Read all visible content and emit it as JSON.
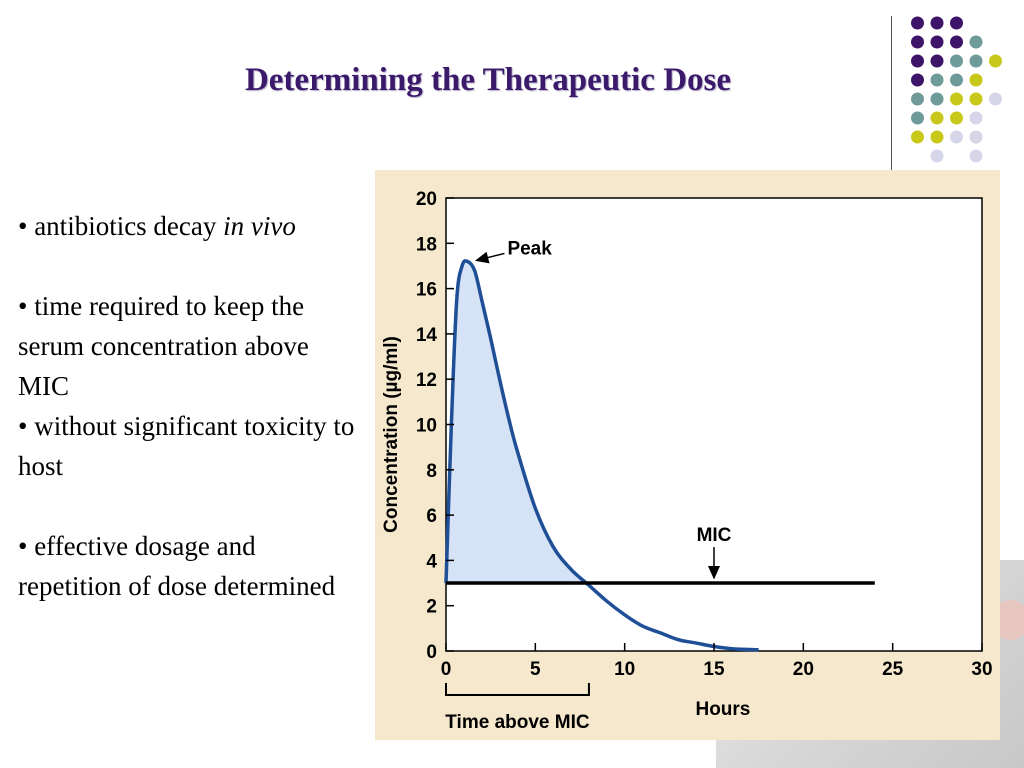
{
  "slide": {
    "title": "Determining the Therapeutic Dose",
    "bullets": [
      {
        "text": "antibiotics decay ",
        "italic": "in vivo"
      },
      {
        "text": "time required to keep the serum concentration above MIC"
      },
      {
        "text": "without significant toxicity to host"
      },
      {
        "text": "effective dosage and repetition of dose determined"
      }
    ],
    "bullet_char": "•"
  },
  "decor": {
    "dot_colors": {
      "purple": "#3d1467",
      "teal": "#6f9a9a",
      "yellow": "#c8c81a",
      "lavender": "#d6d6e8"
    }
  },
  "chart_data": {
    "type": "line",
    "xlabel": "Hours",
    "ylabel": "Concentration (µg/ml)",
    "xlim": [
      0,
      30
    ],
    "ylim": [
      0,
      20
    ],
    "x_ticks": [
      "0",
      "5",
      "10",
      "15",
      "20",
      "25",
      "30"
    ],
    "y_ticks": [
      "0",
      "2",
      "4",
      "6",
      "8",
      "10",
      "12",
      "14",
      "16",
      "18",
      "20"
    ],
    "series": [
      {
        "x": [
          0,
          0.3,
          0.6,
          0.9,
          1.2,
          1.6,
          2,
          2.5,
          3,
          3.5,
          4,
          5,
          6,
          7,
          8,
          9,
          10,
          11,
          12,
          13,
          14,
          15,
          16,
          17.5
        ],
        "y": [
          3,
          10,
          15.5,
          17,
          17.2,
          16.8,
          15.5,
          13.8,
          12,
          10.3,
          8.8,
          6.3,
          4.6,
          3.6,
          2.9,
          2.2,
          1.6,
          1.1,
          0.8,
          0.5,
          0.35,
          0.2,
          0.1,
          0.05
        ],
        "color": "#1f4f96"
      }
    ],
    "mic_line": {
      "value": 3,
      "x_end": 24,
      "label": "MIC"
    },
    "peak": {
      "x": 1.2,
      "y": 17.2,
      "label": "Peak"
    },
    "time_above_mic": {
      "x_start": 0,
      "x_end": 8,
      "label": "Time above MIC"
    },
    "grid": false,
    "fill_color": "#d6e2f6"
  }
}
